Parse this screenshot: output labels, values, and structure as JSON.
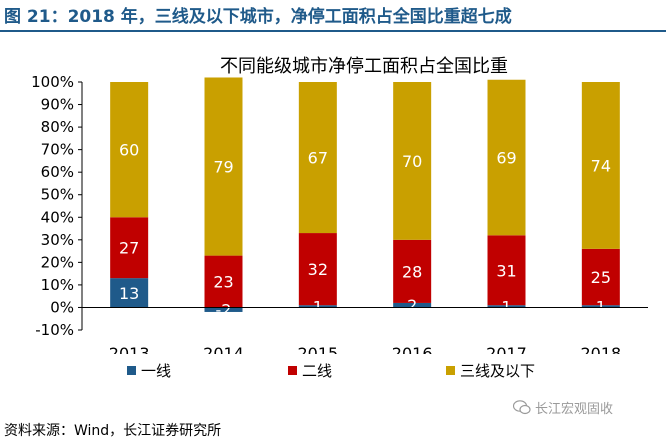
{
  "figure_title": "图 21：2018 年，三线及以下城市，净停工面积占全国比重超七成",
  "source": "资料来源：Wind，长江证券研究所",
  "watermark": "长江宏观固收",
  "watermark_icon": "wechat-icon",
  "chart_data": {
    "type": "bar",
    "stacked": true,
    "title": "不同能级城市净停工面积占全国比重",
    "categories": [
      "2013",
      "2014",
      "2015",
      "2016",
      "2017",
      "2018"
    ],
    "series": [
      {
        "name": "一线",
        "color": "#1f5a8a",
        "values": [
          13,
          -2,
          1,
          2,
          1,
          1
        ]
      },
      {
        "name": "二线",
        "color": "#c00000",
        "values": [
          27,
          23,
          32,
          28,
          31,
          25
        ]
      },
      {
        "name": "三线及以下",
        "color": "#c9a000",
        "values": [
          60,
          79,
          67,
          70,
          69,
          74
        ]
      }
    ],
    "ylim": [
      -10,
      100
    ],
    "yticks": [
      "-10%",
      "0%",
      "10%",
      "20%",
      "30%",
      "40%",
      "50%",
      "60%",
      "70%",
      "80%",
      "90%",
      "100%"
    ],
    "legend_position": "bottom",
    "grid": false
  }
}
